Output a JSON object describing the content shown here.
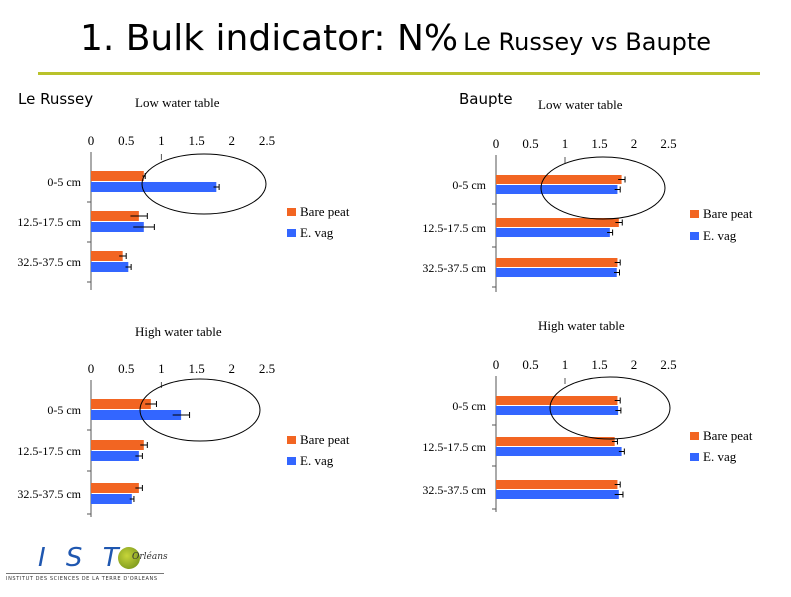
{
  "slide": {
    "title_main": "1. Bulk indicator: N%",
    "title_sub": "Le Russey vs Baupte",
    "site_left": "Le Russey",
    "site_right": "Baupte"
  },
  "logo": {
    "text": "I S T",
    "small": "Orléans",
    "tagline": "INSTITUT DES SCIENCES DE LA TERRE D'ORLEANS"
  },
  "colors": {
    "bare_peat": "#f26522",
    "e_vag": "#3366ff",
    "accent_rule": "#b9c22a"
  },
  "chart_data": [
    {
      "type": "bar",
      "site": "Le Russey",
      "title": "Low water table",
      "orientation": "horizontal",
      "categories": [
        "0-5 cm",
        "12.5-17.5 cm",
        "32.5-37.5 cm"
      ],
      "series": [
        {
          "name": "Bare peat",
          "values": [
            0.75,
            0.68,
            0.45
          ],
          "errors": [
            0.02,
            0.12,
            0.05
          ]
        },
        {
          "name": "E. vag",
          "values": [
            1.78,
            0.75,
            0.53
          ],
          "errors": [
            0.04,
            0.15,
            0.04
          ]
        }
      ],
      "xticks": [
        "0",
        "0.5",
        "1",
        "1.5",
        "2",
        "2.5"
      ],
      "xlim": [
        0,
        2.5
      ],
      "legend": "right",
      "highlight": "0-5 cm"
    },
    {
      "type": "bar",
      "site": "Baupte",
      "title": "Low water table",
      "orientation": "horizontal",
      "categories": [
        "0-5 cm",
        "12.5-17.5 cm",
        "32.5-37.5 cm"
      ],
      "series": [
        {
          "name": "Bare peat",
          "values": [
            1.82,
            1.78,
            1.76
          ],
          "errors": [
            0.05,
            0.05,
            0.04
          ]
        },
        {
          "name": "E. vag",
          "values": [
            1.76,
            1.65,
            1.75
          ],
          "errors": [
            0.04,
            0.04,
            0.04
          ]
        }
      ],
      "xticks": [
        "0",
        "0.5",
        "1",
        "1.5",
        "2",
        "2.5"
      ],
      "xlim": [
        0,
        2.5
      ],
      "legend": "right",
      "highlight": "0-5 cm"
    },
    {
      "type": "bar",
      "site": "Le Russey",
      "title": "High water table",
      "orientation": "horizontal",
      "categories": [
        "0-5 cm",
        "12.5-17.5 cm",
        "32.5-37.5 cm"
      ],
      "series": [
        {
          "name": "Bare peat",
          "values": [
            0.85,
            0.75,
            0.68
          ],
          "errors": [
            0.08,
            0.05,
            0.05
          ]
        },
        {
          "name": "E. vag",
          "values": [
            1.28,
            0.68,
            0.58
          ],
          "errors": [
            0.12,
            0.05,
            0.03
          ]
        }
      ],
      "xticks": [
        "0",
        "0.5",
        "1",
        "1.5",
        "2",
        "2.5"
      ],
      "xlim": [
        0,
        2.5
      ],
      "legend": "right",
      "highlight": "0-5 cm"
    },
    {
      "type": "bar",
      "site": "Baupte",
      "title": "High water table",
      "orientation": "horizontal",
      "categories": [
        "0-5 cm",
        "12.5-17.5 cm",
        "32.5-37.5 cm"
      ],
      "series": [
        {
          "name": "Bare peat",
          "values": [
            1.76,
            1.72,
            1.76
          ],
          "errors": [
            0.04,
            0.04,
            0.04
          ]
        },
        {
          "name": "E. vag",
          "values": [
            1.77,
            1.82,
            1.78
          ],
          "errors": [
            0.04,
            0.04,
            0.06
          ]
        }
      ],
      "xticks": [
        "0",
        "0.5",
        "1",
        "1.5",
        "2",
        "2.5"
      ],
      "xlim": [
        0,
        2.5
      ],
      "legend": "right",
      "highlight": "0-5 cm"
    }
  ]
}
